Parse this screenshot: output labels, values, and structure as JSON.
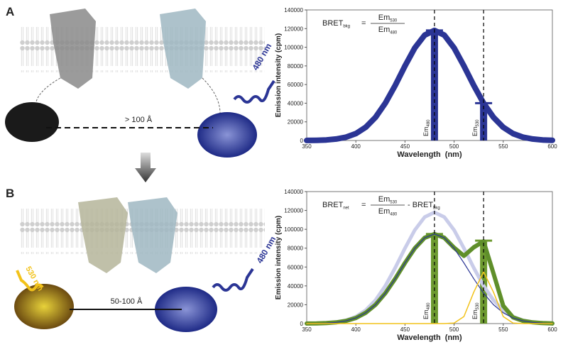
{
  "panels": [
    {
      "label": "A",
      "distance": "> 100 Å",
      "donor_emission": "480 nm"
    },
    {
      "label": "B",
      "distance": "50-100 Å",
      "donor_emission": "480 nm",
      "acceptor_emission": "530 nm"
    }
  ],
  "chart_data": [
    {
      "type": "line",
      "xlabel": "Wavelength  (nm)",
      "ylabel": "Emission intensity (cpm)",
      "xlim": [
        350,
        600
      ],
      "xticks": [
        350,
        400,
        450,
        500,
        550,
        600
      ],
      "ylim": [
        0,
        140000
      ],
      "yticks": [
        0,
        20000,
        40000,
        60000,
        80000,
        100000,
        120000,
        140000
      ],
      "x": [
        350,
        360,
        370,
        380,
        390,
        400,
        410,
        420,
        430,
        440,
        450,
        460,
        470,
        480,
        490,
        500,
        510,
        520,
        530,
        540,
        550,
        560,
        570,
        580,
        590,
        600
      ],
      "series": [
        {
          "color": "#2b3595",
          "values": [
            79,
            232,
            631,
            1560,
            3550,
            7410,
            14170,
            24860,
            40010,
            59070,
            79960,
            99240,
            113010,
            118000,
            113010,
            99240,
            79960,
            59070,
            40010,
            24860,
            14170,
            7410,
            3550,
            1560,
            631,
            232
          ]
        }
      ],
      "bars": {
        "x": [
          480,
          530
        ],
        "values": [
          118000,
          40000
        ],
        "color": "#2b3595",
        "labels": [
          {
            "text": "Em",
            "sub": "480"
          },
          {
            "text": "Em",
            "sub": "530"
          }
        ]
      },
      "vlines": [
        480,
        530
      ],
      "formula": {
        "lhs": "BRET",
        "lhs_sub": "bkg",
        "eq": "=",
        "num": "Em",
        "num_sub": "530",
        "den": "Em",
        "den_sub": "480"
      }
    },
    {
      "type": "line",
      "xlabel": "Wavelength  (nm)",
      "ylabel": "Emission intensity (cpm)",
      "xlim": [
        350,
        600
      ],
      "xticks": [
        350,
        400,
        450,
        500,
        550,
        600
      ],
      "ylim": [
        0,
        140000
      ],
      "yticks": [
        0,
        20000,
        40000,
        60000,
        80000,
        100000,
        120000,
        140000
      ],
      "x": [
        350,
        360,
        370,
        380,
        390,
        400,
        410,
        420,
        430,
        440,
        450,
        460,
        470,
        480,
        490,
        500,
        510,
        520,
        530,
        540,
        550,
        560,
        570,
        580,
        590,
        600
      ],
      "series": [
        {
          "color": "#c9cce9",
          "values": [
            79,
            232,
            631,
            1560,
            3550,
            7410,
            14170,
            24860,
            40010,
            59070,
            79960,
            99240,
            113010,
            118000,
            113010,
            99240,
            79960,
            59070,
            40010,
            24860,
            14170,
            7410,
            3550,
            1560,
            631,
            232
          ]
        },
        {
          "color": "#5f8f2a",
          "values": [
            64,
            187,
            508,
            1256,
            2858,
            5965,
            11407,
            20012,
            32208,
            47551,
            64368,
            79888,
            90973,
            94990,
            90991,
            80499,
            71808,
            80911,
            87208,
            53372,
            18847,
            6576,
            2858,
            1256,
            508,
            187
          ]
        },
        {
          "color": "#2b3595",
          "values": [
            64,
            187,
            508,
            1256,
            2858,
            5965,
            11407,
            20012,
            32208,
            47551,
            64368,
            79888,
            90973,
            94990,
            90973,
            79888,
            64368,
            47551,
            32208,
            20012,
            11407,
            5965,
            2858,
            1256,
            508,
            187
          ]
        },
        {
          "color": "#f2c21a",
          "values": [
            0,
            0,
            0,
            0,
            0,
            0,
            0,
            0,
            0,
            0,
            0,
            0,
            0,
            0,
            18,
            611,
            7440,
            33360,
            55000,
            33360,
            7440,
            611,
            18,
            0,
            0,
            0
          ]
        }
      ],
      "bars": {
        "x": [
          480,
          530
        ],
        "values": [
          95000,
          88000
        ],
        "color": "#6d9a30",
        "labels": [
          {
            "text": "Em",
            "sub": "480"
          },
          {
            "text": "Em",
            "sub": "530"
          }
        ]
      },
      "vlines": [
        480,
        530
      ],
      "formula": {
        "lhs": "BRET",
        "lhs_sub": "net",
        "eq": "=",
        "num": "Em",
        "num_sub": "530",
        "den": "Em",
        "den_sub": "480",
        "rest": "- BRET",
        "rest_sub": "bkg"
      }
    }
  ]
}
